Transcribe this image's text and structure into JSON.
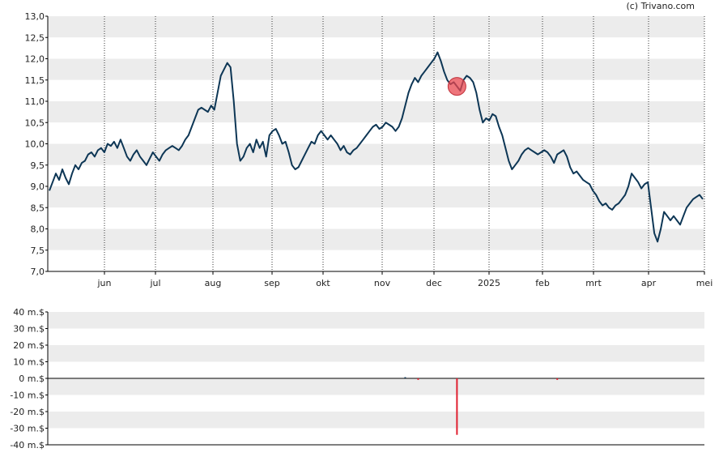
{
  "credit": "(c) Trivano.com",
  "chart_data": [
    {
      "type": "line",
      "ylim": [
        7.0,
        13.0
      ],
      "y_ticks": [
        "13,0",
        "12,5",
        "12,0",
        "11,5",
        "11,0",
        "10,5",
        "10,0",
        "9,5",
        "9,0",
        "8,5",
        "8,0",
        "7,5",
        "7,0"
      ],
      "x_ticks": [
        "jun",
        "jul",
        "aug",
        "sep",
        "okt",
        "nov",
        "dec",
        "2025",
        "feb",
        "mrt",
        "apr",
        "mei"
      ],
      "grid": "horizontal bands, vertical dotted lines at month ticks",
      "series": [
        {
          "color": "#0d3655",
          "values": [
            8.9,
            9.1,
            9.3,
            9.15,
            9.4,
            9.2,
            9.05,
            9.3,
            9.5,
            9.4,
            9.55,
            9.6,
            9.75,
            9.8,
            9.7,
            9.85,
            9.9,
            9.8,
            10.0,
            9.95,
            10.05,
            9.9,
            10.1,
            9.9,
            9.7,
            9.6,
            9.75,
            9.85,
            9.7,
            9.6,
            9.5,
            9.65,
            9.8,
            9.7,
            9.6,
            9.75,
            9.85,
            9.9,
            9.95,
            9.9,
            9.85,
            9.95,
            10.1,
            10.2,
            10.4,
            10.6,
            10.8,
            10.85,
            10.8,
            10.75,
            10.9,
            10.8,
            11.2,
            11.6,
            11.75,
            11.9,
            11.8,
            11.0,
            10.0,
            9.6,
            9.7,
            9.9,
            10.0,
            9.8,
            10.1,
            9.9,
            10.05,
            9.7,
            10.2,
            10.3,
            10.35,
            10.2,
            10.0,
            10.05,
            9.8,
            9.5,
            9.4,
            9.45,
            9.6,
            9.75,
            9.9,
            10.05,
            10.0,
            10.2,
            10.3,
            10.2,
            10.1,
            10.2,
            10.1,
            10.0,
            9.85,
            9.95,
            9.8,
            9.75,
            9.85,
            9.9,
            10.0,
            10.1,
            10.2,
            10.3,
            10.4,
            10.45,
            10.35,
            10.4,
            10.5,
            10.45,
            10.4,
            10.3,
            10.4,
            10.6,
            10.9,
            11.2,
            11.4,
            11.55,
            11.45,
            11.6,
            11.7,
            11.8,
            11.9,
            12.0,
            12.15,
            11.95,
            11.7,
            11.5,
            11.4,
            11.45,
            11.35,
            11.25,
            11.5,
            11.6,
            11.55,
            11.45,
            11.2,
            10.8,
            10.5,
            10.6,
            10.55,
            10.7,
            10.65,
            10.4,
            10.2,
            9.9,
            9.6,
            9.4,
            9.5,
            9.6,
            9.75,
            9.85,
            9.9,
            9.85,
            9.8,
            9.75,
            9.8,
            9.85,
            9.8,
            9.7,
            9.55,
            9.75,
            9.8,
            9.85,
            9.7,
            9.45,
            9.3,
            9.35,
            9.25,
            9.15,
            9.1,
            9.05,
            8.9,
            8.8,
            8.65,
            8.55,
            8.6,
            8.5,
            8.45,
            8.55,
            8.6,
            8.7,
            8.8,
            9.0,
            9.3,
            9.2,
            9.1,
            8.95,
            9.05,
            9.1,
            8.5,
            7.9,
            7.7,
            8.0,
            8.4,
            8.3,
            8.2,
            8.3,
            8.2,
            8.1,
            8.3,
            8.5,
            8.6,
            8.7,
            8.75,
            8.8,
            8.7
          ]
        }
      ],
      "marker": {
        "index": 126,
        "color": "#e8474f"
      }
    },
    {
      "type": "bar",
      "ylim": [
        -40,
        40
      ],
      "y_ticks": [
        "40 m.$",
        "30 m.$",
        "20 m.$",
        "10 m.$",
        "0 m.$",
        "-10 m.$",
        "-20 m.$",
        "-30 m.$",
        "-40 m.$"
      ],
      "bars": [
        {
          "index": 110,
          "value": 0.7,
          "color": "#0d3655"
        },
        {
          "index": 114,
          "value": -0.9,
          "color": "#e02030"
        },
        {
          "index": 126,
          "value": -34,
          "color": "#e02030"
        },
        {
          "index": 157,
          "value": -0.9,
          "color": "#e02030"
        }
      ],
      "grid": "horizontal bands"
    }
  ]
}
